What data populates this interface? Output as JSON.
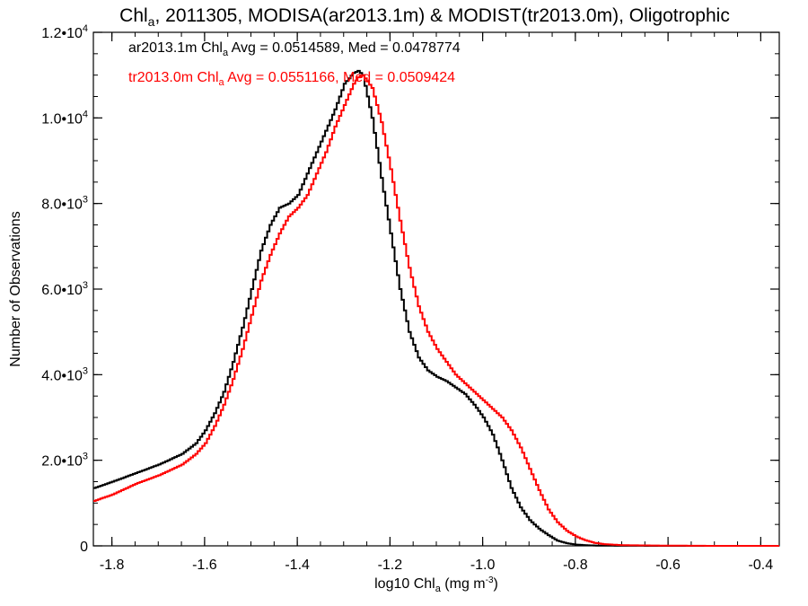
{
  "chart_data": {
    "type": "line",
    "title": {
      "pre": "Chl",
      "sub": "a",
      "post": ", 2011305, MODISA(ar2013.1m) & MODIST(tr2013.0m), Oligotrophic"
    },
    "xlabel": {
      "pre": "log10 Chl",
      "sub": "a",
      "post": " (mg m",
      "sup": "-3",
      "end": ")"
    },
    "ylabel": "Number of Observations",
    "xlim": [
      -1.84,
      -0.36
    ],
    "ylim": [
      0,
      12000
    ],
    "x_ticks": [
      {
        "value": -1.8,
        "label": "-1.8"
      },
      {
        "value": -1.6,
        "label": "-1.6"
      },
      {
        "value": -1.4,
        "label": "-1.4"
      },
      {
        "value": -1.2,
        "label": "-1.2"
      },
      {
        "value": -1.0,
        "label": "-1.0"
      },
      {
        "value": -0.8,
        "label": "-0.8"
      },
      {
        "value": -0.6,
        "label": "-0.6"
      },
      {
        "value": -0.4,
        "label": "-0.4"
      }
    ],
    "y_ticks": [
      {
        "value": 0,
        "mant": "0",
        "exp": ""
      },
      {
        "value": 2000,
        "mant": "2.0•10",
        "exp": "3"
      },
      {
        "value": 4000,
        "mant": "4.0•10",
        "exp": "3"
      },
      {
        "value": 6000,
        "mant": "6.0•10",
        "exp": "3"
      },
      {
        "value": 8000,
        "mant": "8.0•10",
        "exp": "3"
      },
      {
        "value": 10000,
        "mant": "1.0•10",
        "exp": "4"
      },
      {
        "value": 12000,
        "mant": "1.2•10",
        "exp": "4"
      }
    ],
    "x_minor_step": 0.05,
    "y_minor_step": 500,
    "grid": false,
    "legend_position": "top-left",
    "series": [
      {
        "name": "ar2013.1m",
        "color": "#000000",
        "legend_line": {
          "pre": "ar2013.1m Chl",
          "sub": "a",
          "post": " Avg = 0.0514589, Med = 0.0478774"
        },
        "x": [
          -1.84,
          -1.8,
          -1.75,
          -1.7,
          -1.65,
          -1.62,
          -1.6,
          -1.58,
          -1.56,
          -1.54,
          -1.52,
          -1.5,
          -1.48,
          -1.46,
          -1.44,
          -1.42,
          -1.4,
          -1.38,
          -1.36,
          -1.34,
          -1.32,
          -1.3,
          -1.28,
          -1.27,
          -1.26,
          -1.24,
          -1.22,
          -1.2,
          -1.18,
          -1.16,
          -1.14,
          -1.12,
          -1.1,
          -1.08,
          -1.06,
          -1.04,
          -1.02,
          -1.0,
          -0.98,
          -0.96,
          -0.94,
          -0.92,
          -0.9,
          -0.88,
          -0.86,
          -0.84,
          -0.82,
          -0.8,
          -0.78,
          -0.76,
          -0.74,
          -0.7,
          -0.6,
          -0.5,
          -0.4,
          -0.36
        ],
        "y": [
          1350,
          1500,
          1700,
          1900,
          2150,
          2400,
          2700,
          3100,
          3600,
          4300,
          5100,
          6000,
          6900,
          7500,
          7900,
          8000,
          8200,
          8700,
          9200,
          9700,
          10200,
          10800,
          11050,
          11100,
          11000,
          10000,
          8600,
          7300,
          6000,
          5000,
          4400,
          4100,
          3950,
          3850,
          3700,
          3550,
          3300,
          3000,
          2600,
          2000,
          1350,
          900,
          600,
          400,
          250,
          120,
          60,
          30,
          15,
          8,
          5,
          2,
          0,
          0,
          0,
          0
        ]
      },
      {
        "name": "tr2013.0m",
        "color": "#ff0000",
        "legend_line": {
          "pre": "tr2013.0m Chl",
          "sub": "a",
          "post": " Avg = 0.0551166, Med = 0.0509424"
        },
        "x": [
          -1.84,
          -1.8,
          -1.75,
          -1.7,
          -1.65,
          -1.62,
          -1.6,
          -1.58,
          -1.56,
          -1.54,
          -1.52,
          -1.5,
          -1.48,
          -1.46,
          -1.44,
          -1.42,
          -1.4,
          -1.38,
          -1.36,
          -1.34,
          -1.32,
          -1.3,
          -1.28,
          -1.27,
          -1.26,
          -1.24,
          -1.22,
          -1.2,
          -1.18,
          -1.16,
          -1.14,
          -1.12,
          -1.1,
          -1.08,
          -1.06,
          -1.04,
          -1.02,
          -1.0,
          -0.98,
          -0.96,
          -0.94,
          -0.92,
          -0.9,
          -0.88,
          -0.86,
          -0.84,
          -0.82,
          -0.8,
          -0.78,
          -0.76,
          -0.74,
          -0.7,
          -0.6,
          -0.5,
          -0.4,
          -0.36
        ],
        "y": [
          1050,
          1200,
          1450,
          1650,
          1900,
          2150,
          2400,
          2800,
          3300,
          3900,
          4600,
          5400,
          6200,
          6800,
          7300,
          7700,
          7900,
          8200,
          8700,
          9200,
          9800,
          10300,
          10800,
          10950,
          11000,
          10700,
          9900,
          8800,
          7600,
          6500,
          5600,
          5000,
          4600,
          4300,
          4000,
          3800,
          3600,
          3400,
          3200,
          3000,
          2700,
          2300,
          1800,
          1300,
          850,
          550,
          350,
          220,
          130,
          70,
          40,
          15,
          5,
          0,
          0,
          0
        ]
      }
    ]
  }
}
